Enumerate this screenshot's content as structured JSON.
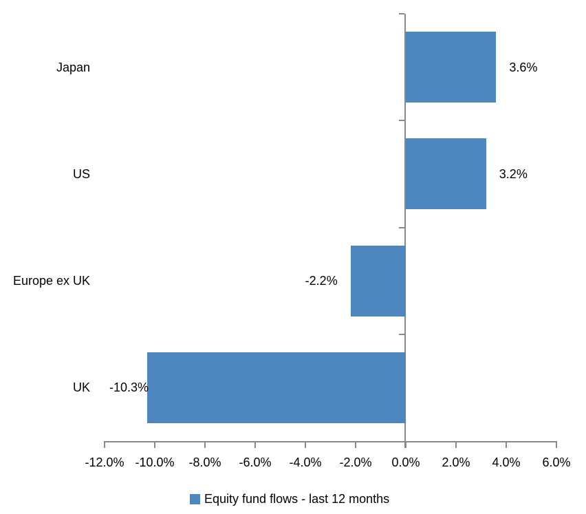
{
  "chart_data": {
    "type": "bar",
    "orientation": "horizontal",
    "title": "",
    "categories": [
      "Japan",
      "US",
      "Europe ex UK",
      "UK"
    ],
    "values": [
      3.6,
      3.2,
      -2.2,
      -10.3
    ],
    "data_labels": [
      "3.6%",
      "3.2%",
      "-2.2%",
      "-10.3%"
    ],
    "xlim": [
      -12,
      6
    ],
    "x_tick_step": 2,
    "x_tick_labels": [
      "-12.0%",
      "-10.0%",
      "-8.0%",
      "-6.0%",
      "-4.0%",
      "-2.0%",
      "0.0%",
      "2.0%",
      "4.0%",
      "6.0%"
    ],
    "grid": false,
    "legend": {
      "label": "Equity fund flows - last 12 months",
      "position": "bottom"
    },
    "colors": {
      "bar": "#4E87BE",
      "axis": "#898989",
      "text": "#000000",
      "background": "#FFFFFF"
    }
  }
}
